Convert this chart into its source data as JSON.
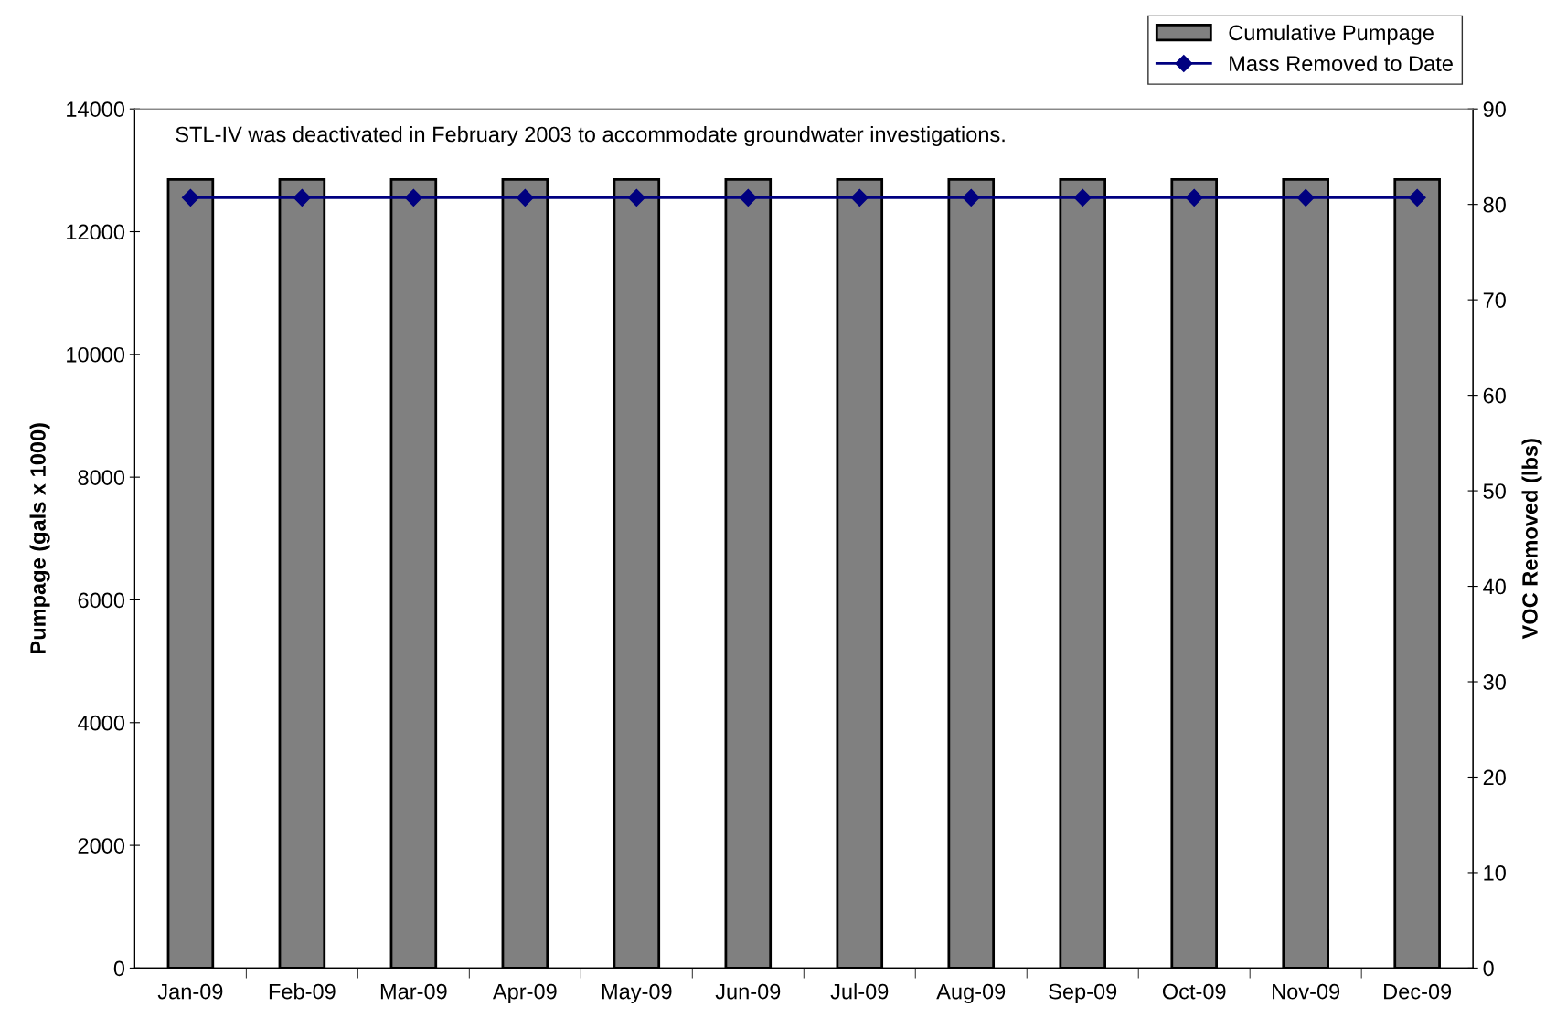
{
  "chart_data": {
    "type": "bar",
    "categories": [
      "Jan-09",
      "Feb-09",
      "Mar-09",
      "Apr-09",
      "May-09",
      "Jun-09",
      "Jul-09",
      "Aug-09",
      "Sep-09",
      "Oct-09",
      "Nov-09",
      "Dec-09"
    ],
    "series": [
      {
        "name": "Cumulative Pumpage",
        "color": "#808080",
        "values": [
          12850,
          12850,
          12850,
          12850,
          12850,
          12850,
          12850,
          12850,
          12850,
          12850,
          12850,
          12850
        ]
      },
      {
        "name": "Mass Removed to Date",
        "type": "line",
        "axis": "y2",
        "color": "#000080",
        "marker": "diamond",
        "values": [
          80.7,
          80.7,
          80.7,
          80.7,
          80.7,
          80.7,
          80.7,
          80.7,
          80.7,
          80.7,
          80.7,
          80.7
        ]
      }
    ],
    "ylabel": "Pumpage (gals x 1000)",
    "y2label": "VOC Removed (lbs)",
    "ylim": [
      0,
      14000
    ],
    "yticks": [
      0,
      2000,
      4000,
      6000,
      8000,
      10000,
      12000,
      14000
    ],
    "y2lim": [
      0,
      90
    ],
    "y2ticks": [
      0,
      10,
      20,
      30,
      40,
      50,
      60,
      70,
      80,
      90
    ],
    "annotations": [
      "STL-IV was deactivated in February 2003 to accommodate groundwater investigations."
    ],
    "legend": "top right",
    "grid": false
  }
}
